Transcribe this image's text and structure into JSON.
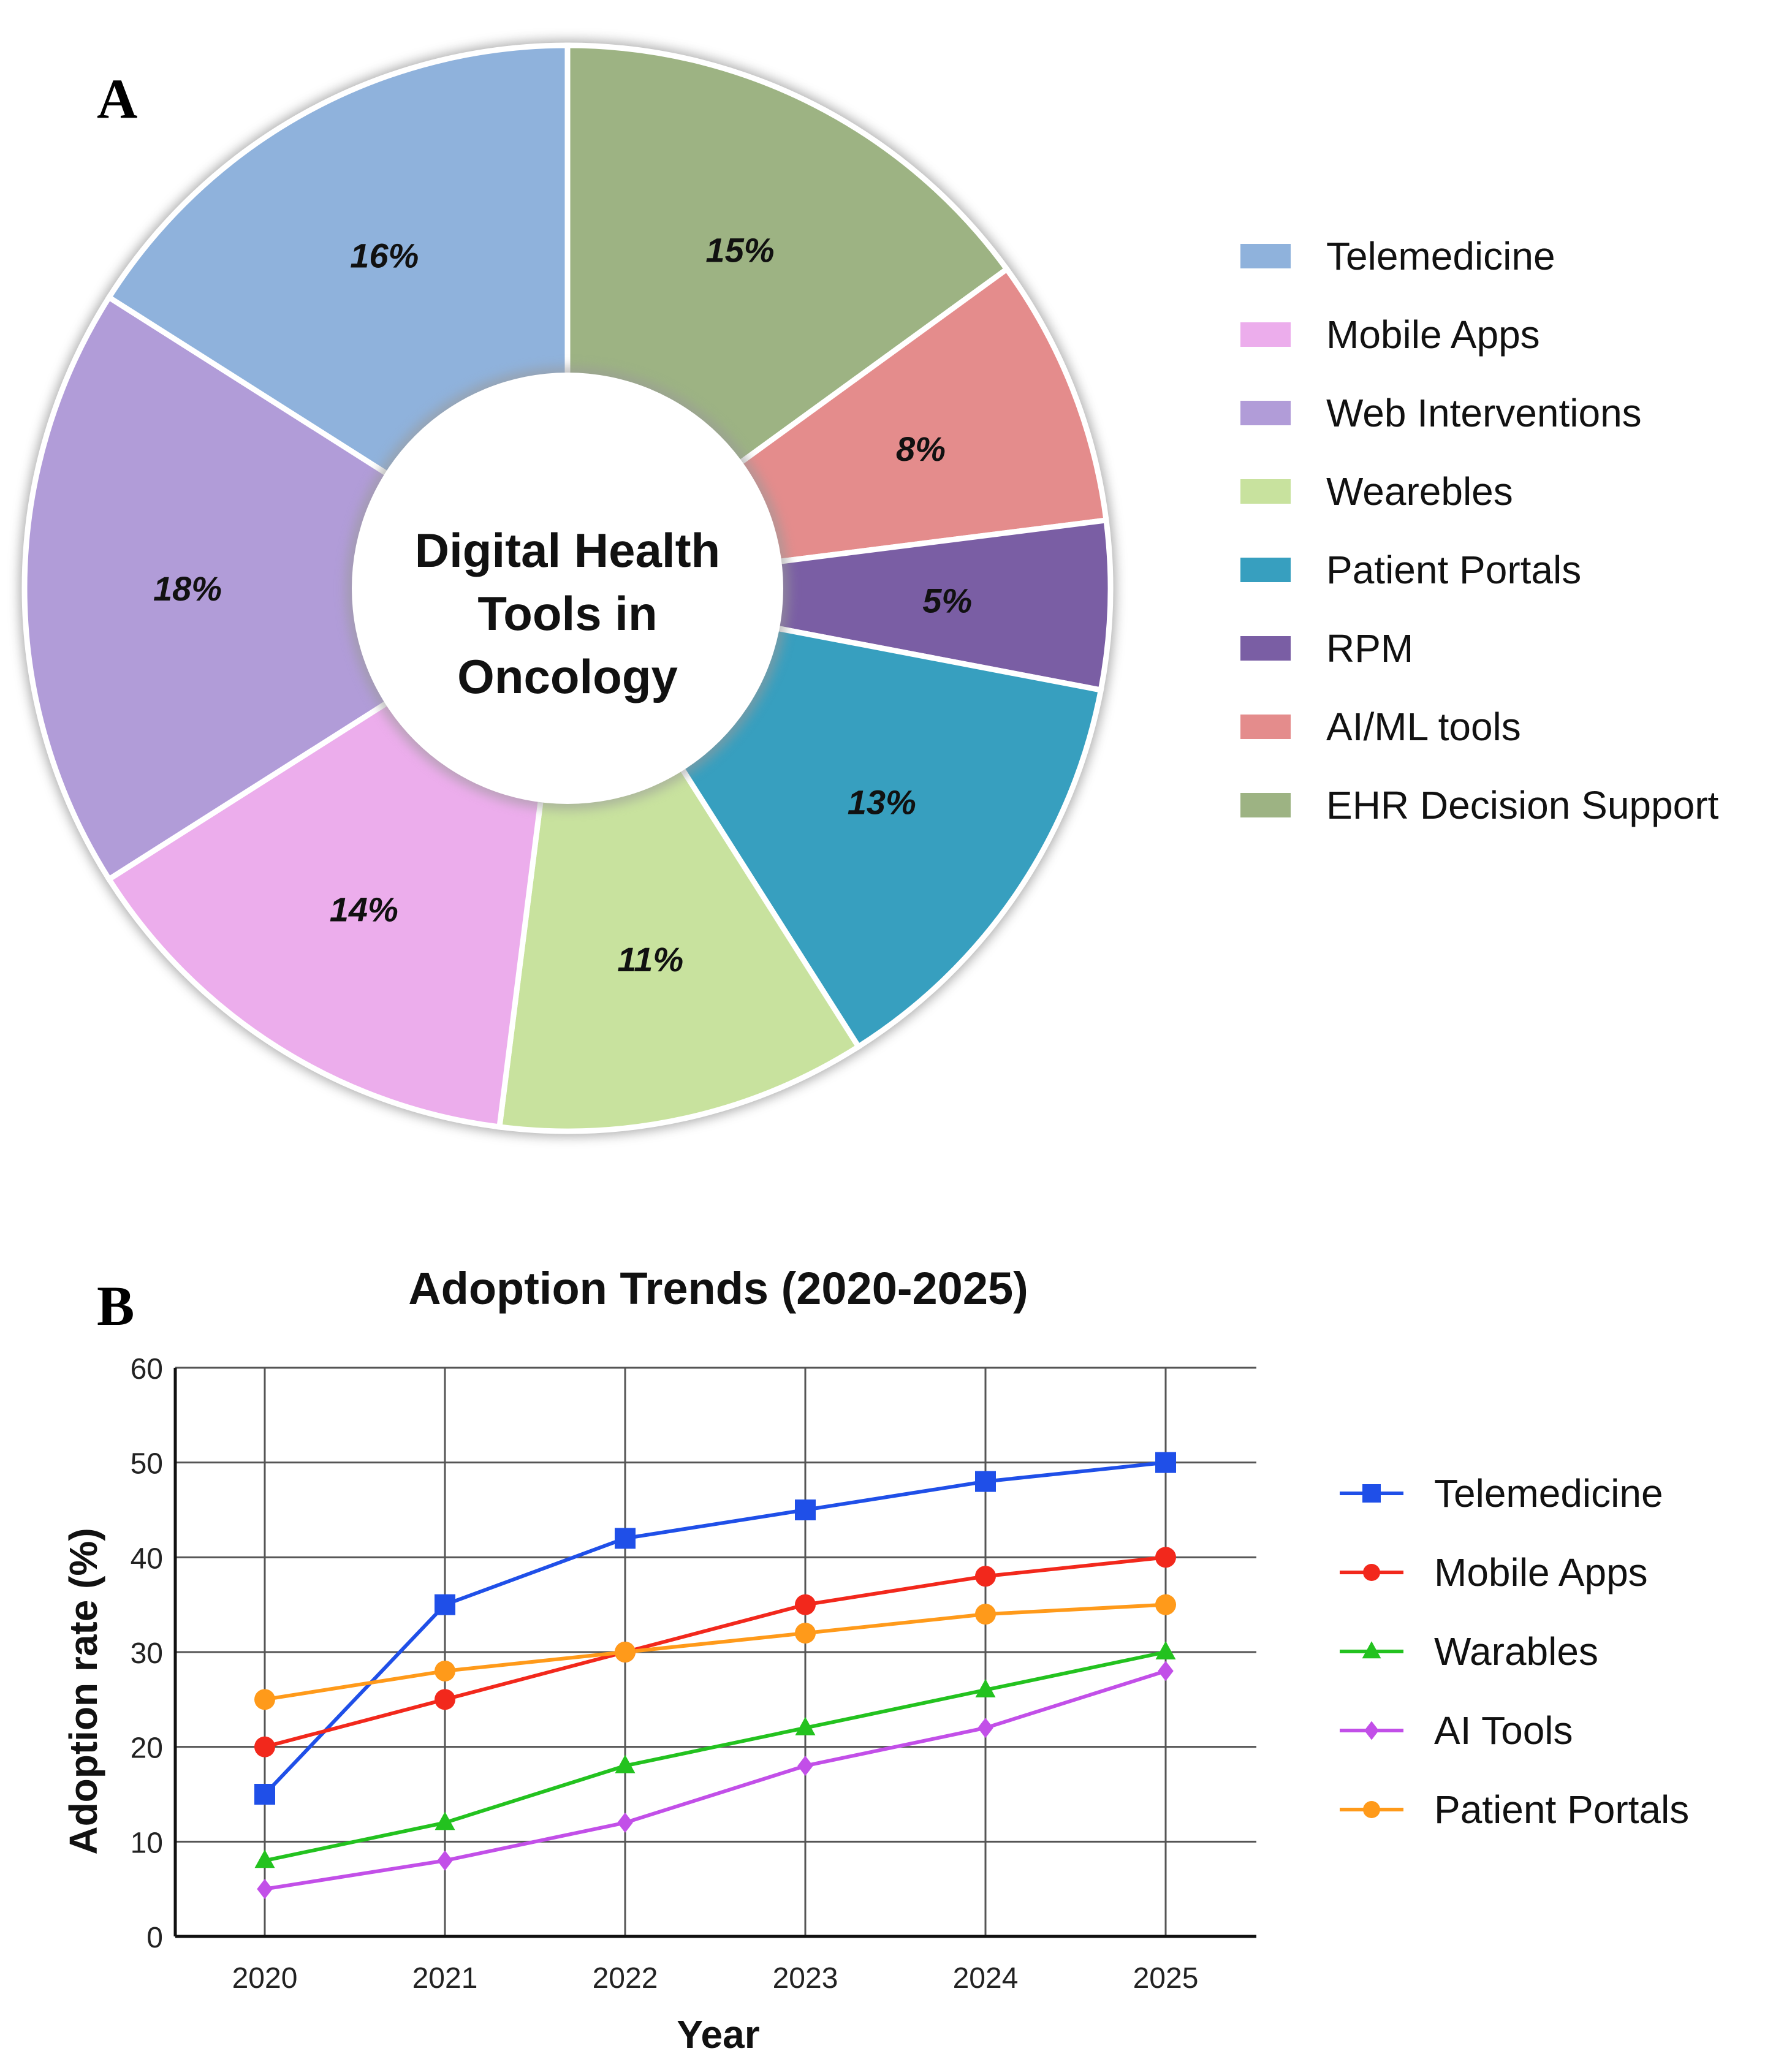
{
  "panel_a_label": "A",
  "panel_b_label": "B",
  "chart_data": [
    {
      "type": "pie",
      "variant": "donut",
      "center_title_lines": [
        "Digital Health",
        "Tools in",
        "Oncology"
      ],
      "slices": [
        {
          "name": "EHR Decision Support",
          "value": 15,
          "label": "15%",
          "color": "#9db383"
        },
        {
          "name": "AI/ML tools",
          "value": 8,
          "label": "8%",
          "color": "#e48c8c"
        },
        {
          "name": "RPM",
          "value": 5,
          "label": "5%",
          "color": "#7a5ea4"
        },
        {
          "name": "Patient Portals",
          "value": 13,
          "label": "13%",
          "color": "#379fbf"
        },
        {
          "name": "Wearebles",
          "value": 11,
          "label": "11%",
          "color": "#c8e29e"
        },
        {
          "name": "Mobile Apps",
          "value": 14,
          "label": "14%",
          "color": "#ecadec"
        },
        {
          "name": "Web Interventions",
          "value": 18,
          "label": "18%",
          "color": "#b19cd8"
        },
        {
          "name": "Telemedicine",
          "value": 16,
          "label": "16%",
          "color": "#8fb2dc"
        }
      ],
      "legend": [
        {
          "name": "Telemedicine",
          "color": "#8fb2dc"
        },
        {
          "name": "Mobile Apps",
          "color": "#ecadec"
        },
        {
          "name": "Web Interventions",
          "color": "#b19cd8"
        },
        {
          "name": "Wearebles",
          "color": "#c8e29e"
        },
        {
          "name": "Patient Portals",
          "color": "#379fbf"
        },
        {
          "name": "RPM",
          "color": "#7a5ea4"
        },
        {
          "name": "AI/ML tools",
          "color": "#e48c8c"
        },
        {
          "name": "EHR Decision Support",
          "color": "#9db383"
        }
      ],
      "legend_position": "right"
    },
    {
      "type": "line",
      "title": "Adoption Trends (2020-2025)",
      "xlabel": "Year",
      "ylabel": "Adoption rate (%)",
      "x": [
        "2020",
        "2021",
        "2022",
        "2023",
        "2024",
        "2025"
      ],
      "ylim": [
        0,
        60
      ],
      "yticks": [
        0,
        10,
        20,
        30,
        40,
        50,
        60
      ],
      "grid": true,
      "legend_position": "right",
      "series": [
        {
          "name": "Telemedicine",
          "values": [
            15,
            35,
            42,
            45,
            48,
            50
          ],
          "color": "#1f4fe8",
          "marker": "square"
        },
        {
          "name": "Mobile Apps",
          "values": [
            20,
            25,
            30,
            35,
            38,
            40
          ],
          "color": "#f2281c",
          "marker": "circle"
        },
        {
          "name": "Warables",
          "values": [
            8,
            12,
            18,
            22,
            26,
            30
          ],
          "color": "#23c21f",
          "marker": "triangle"
        },
        {
          "name": "AI Tools",
          "values": [
            5,
            8,
            12,
            18,
            22,
            28
          ],
          "color": "#c24fe8",
          "marker": "diamond"
        },
        {
          "name": "Patient Portals",
          "values": [
            25,
            28,
            30,
            32,
            34,
            35
          ],
          "color": "#ff9a1a",
          "marker": "circle"
        }
      ]
    }
  ]
}
